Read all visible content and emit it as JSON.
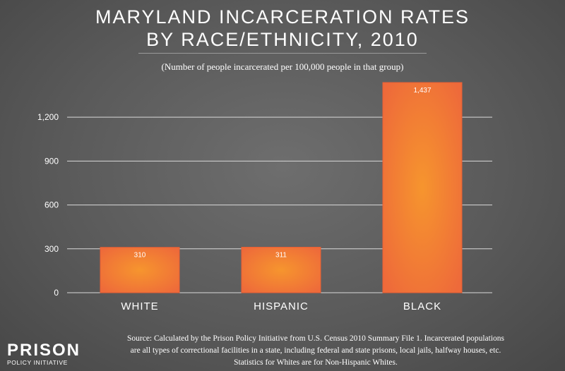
{
  "header": {
    "title_line1": "MARYLAND INCARCERATION RATES",
    "title_line2": "BY RACE/ETHNICITY, 2010",
    "subtitle": "(Number of people incarcerated per 100,000 people in that group)"
  },
  "chart_data": {
    "type": "bar",
    "categories": [
      "WHITE",
      "HISPANIC",
      "BLACK"
    ],
    "values": [
      310,
      311,
      1437
    ],
    "value_labels": [
      "310",
      "311",
      "1,437"
    ],
    "yticks": [
      0,
      300,
      600,
      900,
      1200
    ],
    "ytick_labels": [
      "0",
      "300",
      "600",
      "900",
      "1,200"
    ],
    "ylim": [
      0,
      1437
    ],
    "grid": true,
    "bar_color": "#ee6a3a",
    "bar_highlight": "#f6952e"
  },
  "source": {
    "line1": "Source: Calculated by the Prison Policy Initiative from U.S. Census 2010 Summary File 1. Incarcerated populations",
    "line2": "are all types of correctional facilities in a state, including federal and state prisons, local jails, halfway houses, etc.",
    "line3": "Statistics for Whites are for Non-Hispanic Whites."
  },
  "logo": {
    "main": "PRISON",
    "sub": "POLICY INITIATIVE"
  }
}
